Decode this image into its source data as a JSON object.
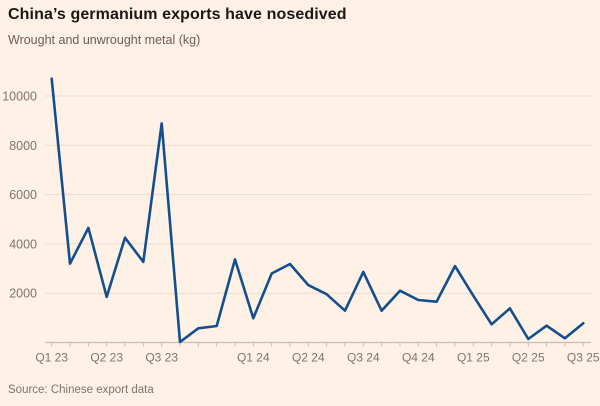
{
  "header": {
    "title": "China’s germanium exports have nosedived",
    "subtitle": "Wrought and unwrought metal (kg)"
  },
  "footer": {
    "source": "Source: Chinese export data"
  },
  "colors": {
    "background": "#FFF1E5",
    "line": "#134F8D",
    "title_text": "#1B1814",
    "subtitle_text": "#66605C",
    "axis_text": "#7D766F",
    "gridline": "#ECDCCC",
    "axis_line": "#C8BDB1"
  },
  "chart_data": {
    "type": "line",
    "title": "China’s germanium exports have nosedived",
    "subtitle": "Wrought and unwrought metal (kg)",
    "ylabel": "Wrought and unwrought metal (kg)",
    "x": [
      "Jan 2023",
      "Feb 2023",
      "Mar 2023",
      "Apr 2023",
      "May 2023",
      "Jun 2023",
      "Jul 2023",
      "Sep 2023",
      "Oct 2023",
      "Nov 2023",
      "Dec 2023",
      "Jan 2024",
      "Feb 2024",
      "Mar 2024",
      "Apr 2024",
      "May 2024",
      "Jun 2024",
      "Jul 2024",
      "Aug 2024",
      "Sep 2024",
      "Oct 2024",
      "Nov 2024",
      "Dec 2024",
      "Jan 2025",
      "Feb 2025",
      "Mar 2025",
      "Apr 2025",
      "May 2025",
      "Jun 2025",
      "Jul 2025"
    ],
    "values": [
      10700,
      3200,
      4650,
      1850,
      4250,
      3270,
      8890,
      20,
      575,
      670,
      3370,
      980,
      2800,
      3185,
      2330,
      1960,
      1290,
      2865,
      1290,
      2100,
      1725,
      1655,
      3100,
      1900,
      740,
      1385,
      140,
      680,
      170,
      780
    ],
    "x_tick_labels": [
      {
        "label": "Q1 23",
        "index": 0
      },
      {
        "label": "Q2 23",
        "index": 3
      },
      {
        "label": "Q3 23",
        "index": 6
      },
      {
        "label": "Q1 24",
        "index": 11
      },
      {
        "label": "Q2 24",
        "index": 14
      },
      {
        "label": "Q3 24",
        "index": 17
      },
      {
        "label": "Q4 24",
        "index": 20
      },
      {
        "label": "Q1 25",
        "index": 23
      },
      {
        "label": "Q2 25",
        "index": 26
      },
      {
        "label": "Q3 25",
        "index": 29
      }
    ],
    "yticks": [
      2000,
      4000,
      6000,
      8000,
      10000
    ],
    "ylim": [
      0,
      11000
    ],
    "grid": "horizontal",
    "legend": "none"
  }
}
